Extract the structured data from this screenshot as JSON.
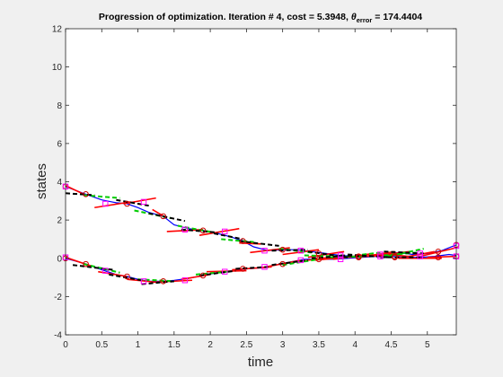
{
  "chart_data": {
    "type": "line",
    "title": {
      "main": "Progression of optimization. Iteration # 4, cost = 5.3948,",
      "theta": "θ",
      "subscript": "error",
      "value": "= 174.4404"
    },
    "xlabel": "time",
    "ylabel": "states",
    "xlim": [
      0,
      5.4
    ],
    "ylim": [
      -4,
      12
    ],
    "xticks": [
      0,
      0.5,
      1,
      1.5,
      2,
      2.5,
      3,
      3.5,
      4,
      4.5,
      5
    ],
    "yticks": [
      -4,
      -2,
      0,
      2,
      4,
      6,
      8,
      10,
      12
    ],
    "grid": false,
    "legend": "none",
    "series": [
      {
        "color": "#0000ff",
        "style": "solid",
        "points": [
          [
            0,
            3.75
          ],
          [
            0.28,
            3.35
          ],
          [
            0.5,
            3.05
          ],
          [
            0.7,
            2.9
          ],
          [
            0.85,
            2.85
          ],
          [
            1.0,
            2.65
          ],
          [
            1.15,
            2.4
          ],
          [
            1.35,
            2.2
          ],
          [
            1.5,
            1.75
          ],
          [
            1.7,
            1.55
          ],
          [
            1.9,
            1.45
          ],
          [
            2.1,
            1.3
          ],
          [
            2.3,
            1.1
          ],
          [
            2.45,
            0.9
          ],
          [
            2.6,
            0.6
          ],
          [
            2.8,
            0.4
          ],
          [
            3.0,
            0.45
          ],
          [
            3.2,
            0.45
          ],
          [
            3.4,
            0.35
          ],
          [
            3.6,
            0.25
          ],
          [
            3.8,
            0.15
          ],
          [
            4.0,
            0.1
          ],
          [
            4.2,
            0.1
          ],
          [
            4.4,
            0.2
          ],
          [
            4.6,
            0.3
          ],
          [
            4.8,
            0.2
          ],
          [
            5.0,
            0.25
          ],
          [
            5.2,
            0.4
          ],
          [
            5.4,
            0.7
          ]
        ]
      },
      {
        "color": "#0000ff",
        "style": "solid",
        "points": [
          [
            0,
            0
          ],
          [
            0.28,
            -0.3
          ],
          [
            0.5,
            -0.6
          ],
          [
            0.7,
            -0.85
          ],
          [
            0.85,
            -0.95
          ],
          [
            1.0,
            -1.1
          ],
          [
            1.15,
            -1.2
          ],
          [
            1.35,
            -1.2
          ],
          [
            1.5,
            -1.15
          ],
          [
            1.7,
            -1.05
          ],
          [
            1.9,
            -0.9
          ],
          [
            2.1,
            -0.75
          ],
          [
            2.3,
            -0.65
          ],
          [
            2.5,
            -0.55
          ],
          [
            2.7,
            -0.5
          ],
          [
            2.9,
            -0.35
          ],
          [
            3.1,
            -0.2
          ],
          [
            3.3,
            -0.05
          ],
          [
            3.5,
            -0.05
          ],
          [
            3.7,
            -0.05
          ],
          [
            3.9,
            0
          ],
          [
            4.1,
            0.05
          ],
          [
            4.3,
            0.1
          ],
          [
            4.5,
            0.1
          ],
          [
            4.7,
            0.05
          ],
          [
            4.9,
            0.05
          ],
          [
            5.1,
            0.1
          ],
          [
            5.3,
            0.2
          ],
          [
            5.4,
            0.15
          ]
        ]
      }
    ],
    "red_segments": [
      [
        [
          0,
          3.8
        ],
        [
          0.28,
          3.3
        ]
      ],
      [
        [
          0.4,
          2.65
        ],
        [
          0.9,
          2.95
        ]
      ],
      [
        [
          0.8,
          2.85
        ],
        [
          1.25,
          3.15
        ]
      ],
      [
        [
          1.2,
          2.55
        ],
        [
          1.4,
          2.1
        ]
      ],
      [
        [
          1.4,
          1.4
        ],
        [
          1.9,
          1.5
        ]
      ],
      [
        [
          1.85,
          1.2
        ],
        [
          2.4,
          1.55
        ]
      ],
      [
        [
          2.4,
          0.8
        ],
        [
          2.7,
          0.75
        ]
      ],
      [
        [
          2.55,
          0.3
        ],
        [
          3.1,
          0.55
        ]
      ],
      [
        [
          3.0,
          0.2
        ],
        [
          3.5,
          0.45
        ]
      ],
      [
        [
          3.35,
          0.05
        ],
        [
          3.85,
          0.35
        ]
      ],
      [
        [
          3.7,
          -0.05
        ],
        [
          4.25,
          0.25
        ]
      ],
      [
        [
          4.05,
          0.05
        ],
        [
          4.55,
          0.35
        ]
      ],
      [
        [
          4.3,
          0.25
        ],
        [
          4.75,
          0.1
        ]
      ],
      [
        [
          4.6,
          0
        ],
        [
          5.1,
          0.35
        ]
      ],
      [
        [
          4.9,
          0.1
        ],
        [
          5.4,
          0.55
        ]
      ],
      [
        [
          0,
          0.05
        ],
        [
          0.35,
          -0.4
        ]
      ],
      [
        [
          0.45,
          -0.7
        ],
        [
          0.85,
          -0.95
        ]
      ],
      [
        [
          0.85,
          -1.1
        ],
        [
          1.25,
          -1.25
        ]
      ],
      [
        [
          1.2,
          -1.25
        ],
        [
          1.75,
          -1.15
        ]
      ],
      [
        [
          1.6,
          -1.1
        ],
        [
          2.0,
          -0.85
        ]
      ],
      [
        [
          1.95,
          -0.7
        ],
        [
          2.5,
          -0.65
        ]
      ],
      [
        [
          2.3,
          -0.6
        ],
        [
          2.85,
          -0.45
        ]
      ],
      [
        [
          2.7,
          -0.5
        ],
        [
          3.25,
          -0.1
        ]
      ],
      [
        [
          3.15,
          -0.2
        ],
        [
          3.65,
          0.05
        ]
      ],
      [
        [
          3.45,
          -0.1
        ],
        [
          4.0,
          0.1
        ]
      ],
      [
        [
          3.9,
          0.05
        ],
        [
          4.4,
          0.15
        ]
      ],
      [
        [
          4.2,
          0.1
        ],
        [
          4.75,
          0.35
        ]
      ],
      [
        [
          4.6,
          0
        ],
        [
          5.2,
          0
        ]
      ],
      [
        [
          5.0,
          0.05
        ],
        [
          5.4,
          0.1
        ]
      ]
    ],
    "green_segments": [
      [
        [
          0.25,
          3.3
        ],
        [
          0.75,
          3.15
        ]
      ],
      [
        [
          0.95,
          2.5
        ],
        [
          1.45,
          2.1
        ]
      ],
      [
        [
          1.55,
          1.7
        ],
        [
          2.05,
          1.35
        ]
      ],
      [
        [
          2.15,
          1.0
        ],
        [
          2.6,
          0.85
        ]
      ],
      [
        [
          2.95,
          0.5
        ],
        [
          3.4,
          0.3
        ]
      ],
      [
        [
          3.3,
          0.15
        ],
        [
          3.8,
          0.1
        ]
      ],
      [
        [
          3.9,
          0.1
        ],
        [
          4.35,
          0.3
        ]
      ],
      [
        [
          4.45,
          0.1
        ],
        [
          4.95,
          0.5
        ]
      ],
      [
        [
          0.25,
          -0.3
        ],
        [
          0.75,
          -0.75
        ]
      ],
      [
        [
          1.0,
          -1.1
        ],
        [
          1.5,
          -1.2
        ]
      ],
      [
        [
          1.8,
          -0.85
        ],
        [
          2.25,
          -0.7
        ]
      ],
      [
        [
          3.0,
          -0.35
        ],
        [
          3.5,
          -0.05
        ]
      ],
      [
        [
          3.65,
          0.05
        ],
        [
          4.15,
          0.1
        ]
      ],
      [
        [
          4.4,
          0.15
        ],
        [
          4.85,
          0.3
        ]
      ]
    ],
    "black_segments": [
      [
        [
          0,
          3.4
        ],
        [
          0.4,
          3.3
        ]
      ],
      [
        [
          0.7,
          3.05
        ],
        [
          1.15,
          2.75
        ]
      ],
      [
        [
          1.15,
          2.35
        ],
        [
          1.65,
          1.95
        ]
      ],
      [
        [
          1.6,
          1.5
        ],
        [
          2.1,
          1.35
        ]
      ],
      [
        [
          2.05,
          1.3
        ],
        [
          2.45,
          1.0
        ]
      ],
      [
        [
          2.4,
          0.9
        ],
        [
          2.95,
          0.65
        ]
      ],
      [
        [
          2.85,
          0.4
        ],
        [
          3.35,
          0.45
        ]
      ],
      [
        [
          3.35,
          0.35
        ],
        [
          3.9,
          0.05
        ]
      ],
      [
        [
          3.8,
          0.15
        ],
        [
          4.35,
          0.1
        ]
      ],
      [
        [
          4.4,
          0.35
        ],
        [
          4.95,
          0.25
        ]
      ],
      [
        [
          0.1,
          -0.35
        ],
        [
          0.65,
          -0.6
        ]
      ],
      [
        [
          0.6,
          -0.85
        ],
        [
          1.05,
          -1.15
        ]
      ],
      [
        [
          1.05,
          -1.35
        ],
        [
          1.5,
          -1.2
        ]
      ],
      [
        [
          1.85,
          -0.9
        ],
        [
          2.35,
          -0.65
        ]
      ],
      [
        [
          2.35,
          -0.55
        ],
        [
          2.8,
          -0.45
        ]
      ],
      [
        [
          2.85,
          -0.35
        ],
        [
          3.35,
          -0.1
        ]
      ],
      [
        [
          3.4,
          0
        ],
        [
          3.95,
          0.15
        ]
      ],
      [
        [
          3.9,
          0.2
        ],
        [
          4.45,
          0.05
        ]
      ],
      [
        [
          4.35,
          0.05
        ],
        [
          4.9,
          0.05
        ]
      ]
    ],
    "circle_markers": [
      [
        0,
        3.75
      ],
      [
        0.28,
        3.35
      ],
      [
        0.85,
        2.85
      ],
      [
        1.35,
        2.2
      ],
      [
        1.9,
        1.45
      ],
      [
        2.45,
        0.9
      ],
      [
        3.0,
        0.45
      ],
      [
        3.5,
        0.25
      ],
      [
        4.05,
        0.1
      ],
      [
        4.55,
        0.1
      ],
      [
        5.15,
        0.35
      ],
      [
        5.4,
        0.7
      ],
      [
        0,
        0
      ],
      [
        0.28,
        -0.3
      ],
      [
        0.85,
        -0.95
      ],
      [
        1.35,
        -1.2
      ],
      [
        1.9,
        -0.9
      ],
      [
        2.45,
        -0.55
      ],
      [
        3.0,
        -0.3
      ],
      [
        3.5,
        -0.05
      ],
      [
        4.05,
        0.05
      ],
      [
        4.55,
        0.05
      ],
      [
        5.15,
        0.05
      ],
      [
        5.4,
        0.1
      ]
    ],
    "square_markers": [
      [
        0,
        3.75
      ],
      [
        0.55,
        2.85
      ],
      [
        1.08,
        2.95
      ],
      [
        1.65,
        1.5
      ],
      [
        2.2,
        1.4
      ],
      [
        2.75,
        0.4
      ],
      [
        3.25,
        0.4
      ],
      [
        3.8,
        0.15
      ],
      [
        4.35,
        0.2
      ],
      [
        4.9,
        0.25
      ],
      [
        5.4,
        0.65
      ],
      [
        0,
        0.05
      ],
      [
        0.55,
        -0.65
      ],
      [
        1.08,
        -1.2
      ],
      [
        1.65,
        -1.15
      ],
      [
        2.2,
        -0.7
      ],
      [
        2.75,
        -0.45
      ],
      [
        3.25,
        -0.1
      ],
      [
        3.8,
        -0.05
      ],
      [
        4.35,
        0.1
      ],
      [
        4.9,
        0.1
      ],
      [
        5.4,
        0.1
      ]
    ]
  }
}
